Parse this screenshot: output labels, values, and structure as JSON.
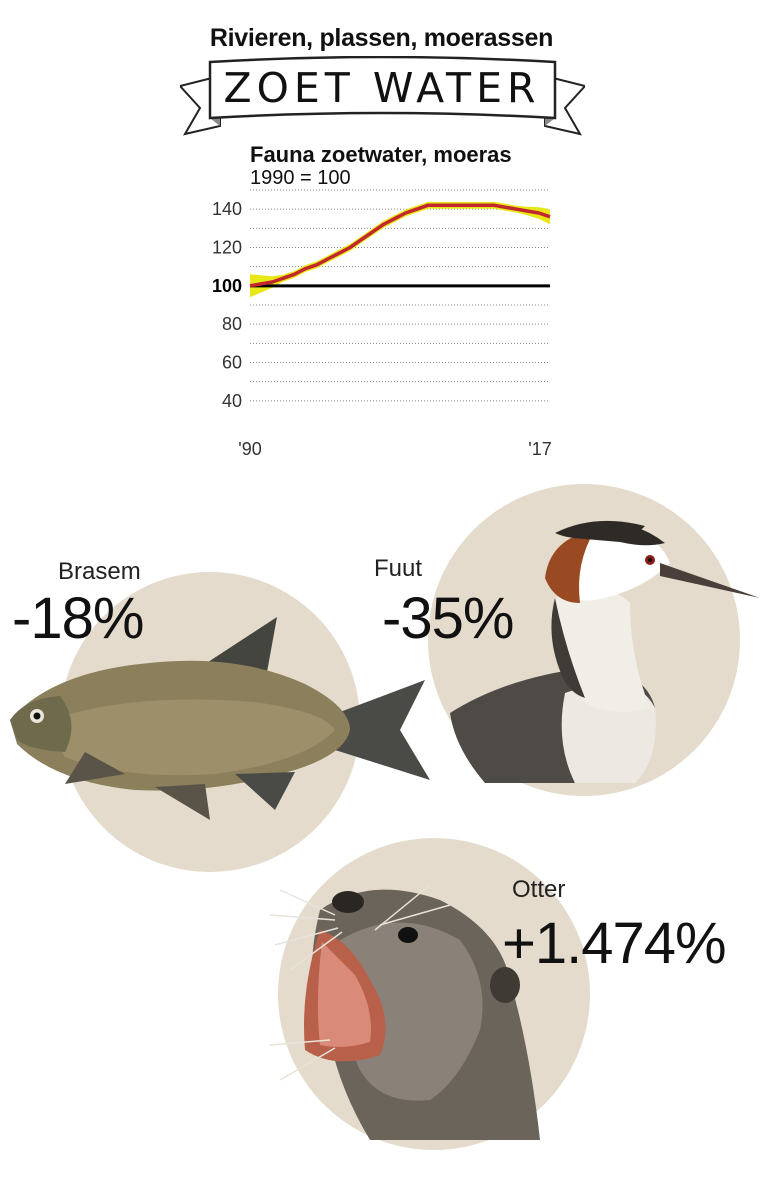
{
  "header": {
    "supertitle": "Rivieren, plassen, moerassen",
    "banner": "ZOET WATER"
  },
  "chart": {
    "title": "Fauna zoetwater, moeras",
    "subtitle": "1990 = 100"
  },
  "chart_data": {
    "type": "line",
    "title": "Fauna zoetwater, moeras",
    "subtitle": "1990 = 100",
    "x": [
      1990,
      1991,
      1992,
      1993,
      1994,
      1995,
      1996,
      1997,
      1998,
      1999,
      2000,
      2001,
      2002,
      2003,
      2004,
      2005,
      2006,
      2007,
      2008,
      2009,
      2010,
      2011,
      2012,
      2013,
      2014,
      2015,
      2016,
      2017
    ],
    "series": [
      {
        "values": [
          100,
          101,
          102,
          104,
          106,
          109,
          111,
          114,
          117,
          120,
          124,
          128,
          132,
          135,
          138,
          140,
          142,
          142,
          142,
          142,
          142,
          142,
          142,
          141,
          140,
          139,
          138,
          136
        ],
        "color": "#c1272d"
      }
    ],
    "confidence_band": {
      "color": "#e6e600"
    },
    "reference_line": {
      "y": 100,
      "color": "#000000"
    },
    "x_tick_labels": [
      "'90",
      "'17"
    ],
    "y_ticks": [
      40,
      60,
      80,
      100,
      120,
      140
    ],
    "ylim": [
      30,
      150
    ],
    "grid": "horizontal dotted"
  },
  "species": [
    {
      "name": "Brasem",
      "change": "-18%",
      "image": "bream-fish"
    },
    {
      "name": "Fuut",
      "change": "-35%",
      "image": "great-crested-grebe"
    },
    {
      "name": "Otter",
      "change": "+1.474%",
      "image": "otter"
    }
  ],
  "colors": {
    "circle": "#e4dbcc",
    "line": "#c1272d",
    "band": "#e6e600"
  }
}
